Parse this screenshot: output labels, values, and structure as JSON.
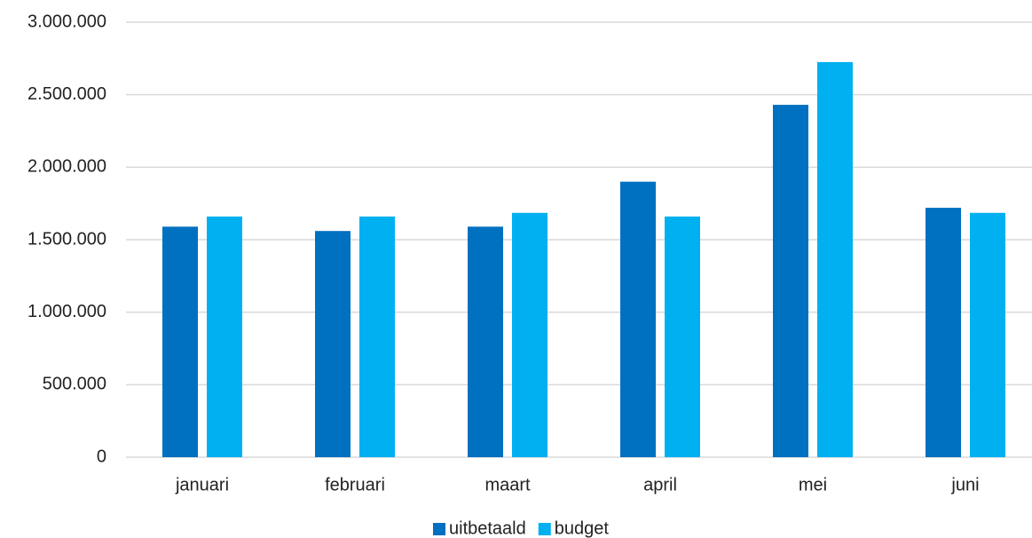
{
  "chart_data": {
    "type": "bar",
    "categories": [
      "januari",
      "februari",
      "maart",
      "april",
      "mei",
      "juni"
    ],
    "series": [
      {
        "name": "uitbetaald",
        "color": "#0070c0",
        "values": [
          1590000,
          1560000,
          1590000,
          1900000,
          2430000,
          1720000
        ]
      },
      {
        "name": "budget",
        "color": "#00b0f0",
        "values": [
          1660000,
          1660000,
          1685000,
          1660000,
          2725000,
          1685000
        ]
      }
    ],
    "ylim": [
      0,
      3000000
    ],
    "yticks": [
      0,
      {
        "value": 500000,
        "label": "500.000"
      },
      {
        "value": 1000000,
        "label": "1.000.000"
      },
      {
        "value": 1500000,
        "label": "1.500.000"
      },
      {
        "value": 2000000,
        "label": "2.000.000"
      },
      {
        "value": 2500000,
        "label": "2.500.000"
      },
      {
        "value": 3000000,
        "label": "3.000.000"
      }
    ],
    "grid": true,
    "legend": "bottom"
  }
}
